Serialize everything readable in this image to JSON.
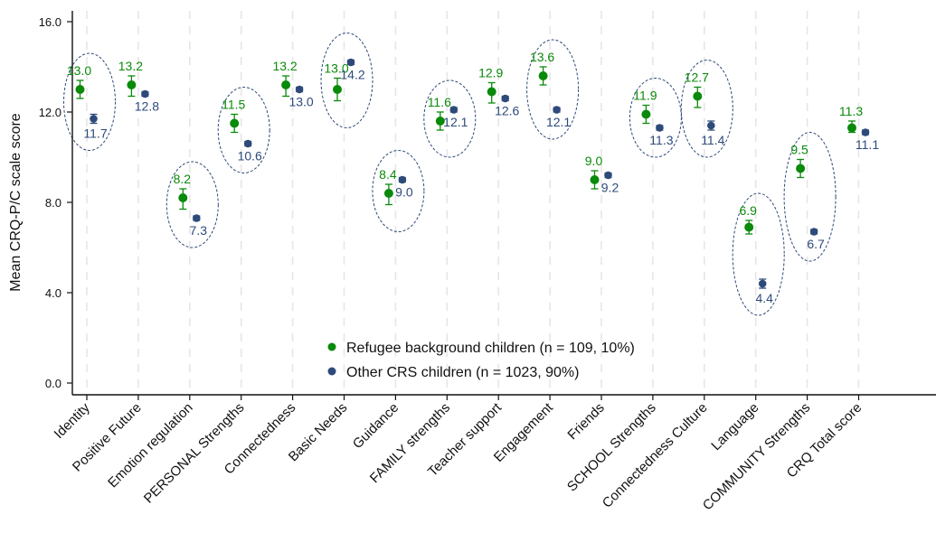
{
  "chart_data": {
    "type": "scatter",
    "ylabel": "Mean CRQ-P/C scale score",
    "ylim": [
      0,
      16
    ],
    "yticks": [
      "0.0",
      "4.0",
      "8.0",
      "12.0",
      "16.0"
    ],
    "grid": "vertical dashed",
    "legend_position": "bottom-center",
    "categories": [
      "Identity",
      "Positive Future",
      "Emotion regulation",
      "PERSONAL Strengths",
      "Connectedness",
      "Basic Needs",
      "Guidance",
      "FAMILY strengths",
      "Teacher support",
      "Engagement",
      "Friends",
      "SCHOOL Strengths",
      "Connectedness Culture",
      "Language",
      "COMMUNITY Strengths",
      "CRQ Total score"
    ],
    "circled_categories": [
      "Identity",
      "PERSONAL Strengths",
      "Basic Needs",
      "Guidance",
      "FAMILY strengths",
      "Engagement",
      "SCHOOL Strengths",
      "Connectedness Culture",
      "Language",
      "COMMUNITY Strengths",
      "Emotion regulation"
    ],
    "series": [
      {
        "name": "Refugee background children (n = 109, 10%)",
        "color": "#0a8a0a",
        "values": [
          13.0,
          13.2,
          8.2,
          11.5,
          13.2,
          13.0,
          8.4,
          11.6,
          12.9,
          13.6,
          9.0,
          11.9,
          12.7,
          6.9,
          9.5,
          11.3
        ],
        "labels": [
          "13.0",
          "13.2",
          "8.2",
          "11.5",
          "13.2",
          "13.0",
          "8.4",
          "11.6",
          "12.9",
          "13.6",
          "9.0",
          "11.9",
          "12.7",
          "6.9",
          "9.5",
          "11.3"
        ],
        "ci_low": [
          12.6,
          12.7,
          7.7,
          11.1,
          12.7,
          12.5,
          7.9,
          11.2,
          12.4,
          13.2,
          8.6,
          11.5,
          12.2,
          6.6,
          9.1,
          11.1
        ],
        "ci_high": [
          13.4,
          13.6,
          8.6,
          11.9,
          13.6,
          13.5,
          8.8,
          12.0,
          13.3,
          14.0,
          9.4,
          12.3,
          13.1,
          7.2,
          9.9,
          11.6
        ]
      },
      {
        "name": "Other CRS children (n = 1023, 90%)",
        "color": "#2e4a7a",
        "values": [
          11.7,
          12.8,
          7.3,
          10.6,
          13.0,
          14.2,
          9.0,
          12.1,
          12.6,
          12.1,
          9.2,
          11.3,
          11.4,
          4.4,
          6.7,
          11.1
        ],
        "labels": [
          "11.7",
          "12.8",
          "7.3",
          "10.6",
          "13.0",
          "14.2",
          "9.0",
          "12.1",
          "12.6",
          "12.1",
          "9.2",
          "11.3",
          "11.4",
          "4.4",
          "6.7",
          "11.1"
        ],
        "ci_low": [
          11.5,
          12.7,
          7.2,
          10.5,
          12.9,
          14.1,
          8.9,
          12.0,
          12.5,
          12.0,
          9.1,
          11.2,
          11.2,
          4.2,
          6.6,
          11.0
        ],
        "ci_high": [
          11.9,
          12.9,
          7.4,
          10.7,
          13.1,
          14.3,
          9.1,
          12.2,
          12.7,
          12.2,
          9.3,
          11.4,
          11.6,
          4.6,
          6.8,
          11.2
        ]
      }
    ]
  }
}
